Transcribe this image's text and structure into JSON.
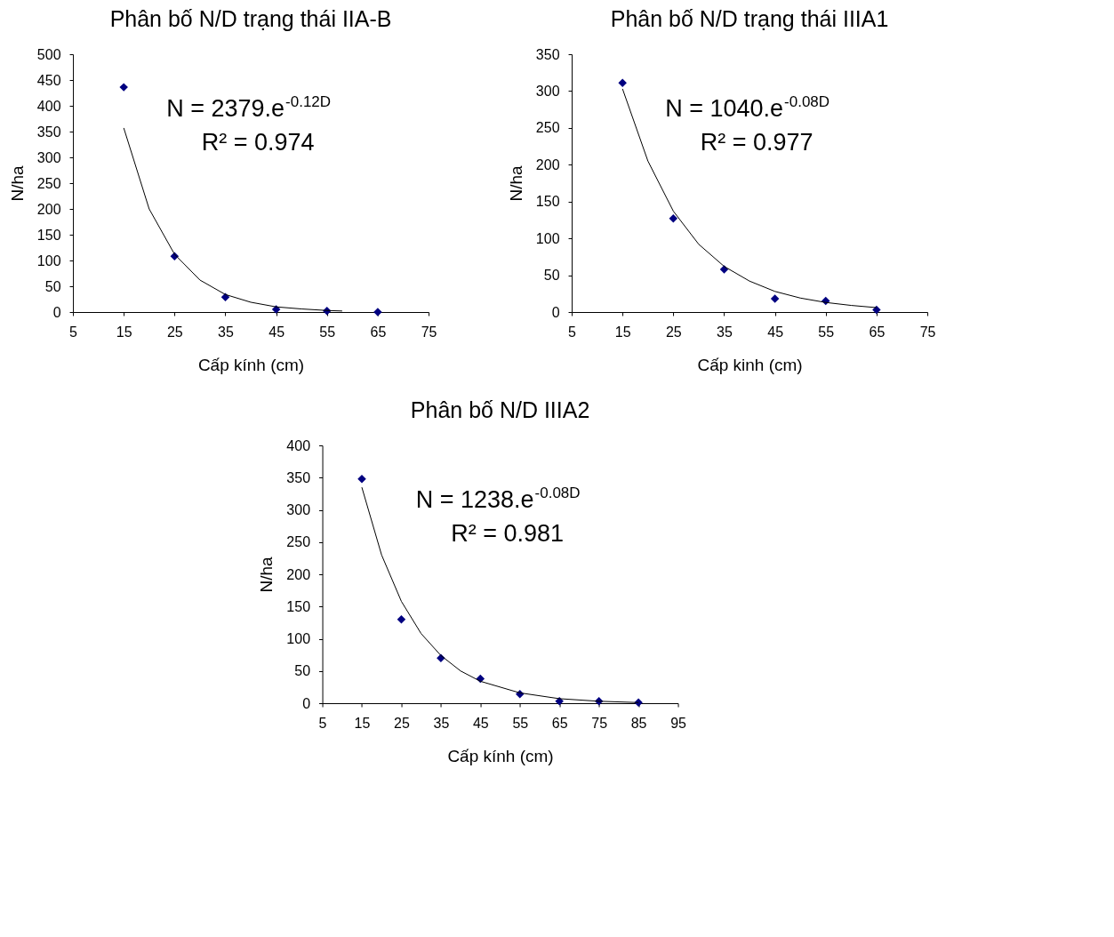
{
  "chart_data": [
    {
      "type": "scatter",
      "title": "Phân bố N/D trạng thái IIA-B",
      "xlabel": "Cấp kính (cm)",
      "ylabel": "N/ha",
      "xlim": [
        5,
        75
      ],
      "xticks": [
        5,
        15,
        25,
        35,
        45,
        55,
        65,
        75
      ],
      "ylim": [
        0,
        500
      ],
      "yticks": [
        0,
        50,
        100,
        150,
        200,
        250,
        300,
        350,
        400,
        450,
        500
      ],
      "grid": false,
      "legend": false,
      "annotations": [
        "N = 2379.e$^{-0.12D}$",
        "R² = 0.974"
      ],
      "series": [
        {
          "marker": "diamond",
          "color": "#000080",
          "x": [
            15,
            25,
            35,
            45,
            55,
            65
          ],
          "values": [
            436,
            108,
            29,
            5,
            2,
            0
          ]
        },
        {
          "type": "line",
          "color": "#000000",
          "x": [
            15,
            20,
            25,
            30,
            35,
            40,
            45,
            50,
            55,
            58
          ],
          "values": [
            357,
            200,
            112,
            62,
            34,
            19,
            10,
            6,
            3,
            2
          ]
        }
      ]
    },
    {
      "type": "scatter",
      "title": "Phân bố N/D trạng thái IIIA1",
      "xlabel": "Cấp kinh (cm)",
      "ylabel": "N/ha",
      "xlim": [
        5,
        75
      ],
      "xticks": [
        5,
        15,
        25,
        35,
        45,
        55,
        65,
        75
      ],
      "ylim": [
        0,
        350
      ],
      "yticks": [
        0,
        50,
        100,
        150,
        200,
        250,
        300,
        350
      ],
      "grid": false,
      "legend": false,
      "annotations": [
        "N = 1040.e$^{-0.08D}$",
        "R² = 0.977"
      ],
      "series": [
        {
          "marker": "diamond",
          "color": "#000080",
          "x": [
            15,
            25,
            35,
            45,
            55,
            65
          ],
          "values": [
            311,
            127,
            58,
            18,
            15,
            3
          ]
        },
        {
          "type": "line",
          "color": "#000000",
          "x": [
            15,
            20,
            25,
            30,
            35,
            40,
            45,
            50,
            55,
            60,
            65
          ],
          "values": [
            303,
            205,
            137,
            92,
            62,
            42,
            28,
            19,
            13,
            9,
            6
          ]
        }
      ]
    },
    {
      "type": "scatter",
      "title": "Phân bố N/D IIIA2",
      "xlabel": "Cấp kính (cm)",
      "ylabel": "N/ha",
      "xlim": [
        5,
        95
      ],
      "xticks": [
        5,
        15,
        25,
        35,
        45,
        55,
        65,
        75,
        85,
        95
      ],
      "ylim": [
        0,
        400
      ],
      "yticks": [
        0,
        50,
        100,
        150,
        200,
        250,
        300,
        350,
        400
      ],
      "grid": false,
      "legend": false,
      "annotations": [
        "N = 1238.e$^{-0.08D}$",
        "R² = 0.981"
      ],
      "series": [
        {
          "marker": "diamond",
          "color": "#000080",
          "x": [
            15,
            25,
            35,
            45,
            55,
            65,
            75,
            85
          ],
          "values": [
            348,
            130,
            70,
            38,
            14,
            3,
            3,
            1
          ]
        },
        {
          "type": "line",
          "color": "#000000",
          "x": [
            15,
            20,
            25,
            30,
            35,
            40,
            45,
            55,
            65,
            75,
            85
          ],
          "values": [
            335,
            230,
            158,
            108,
            74,
            50,
            34,
            16,
            7,
            3,
            1
          ]
        }
      ]
    }
  ]
}
